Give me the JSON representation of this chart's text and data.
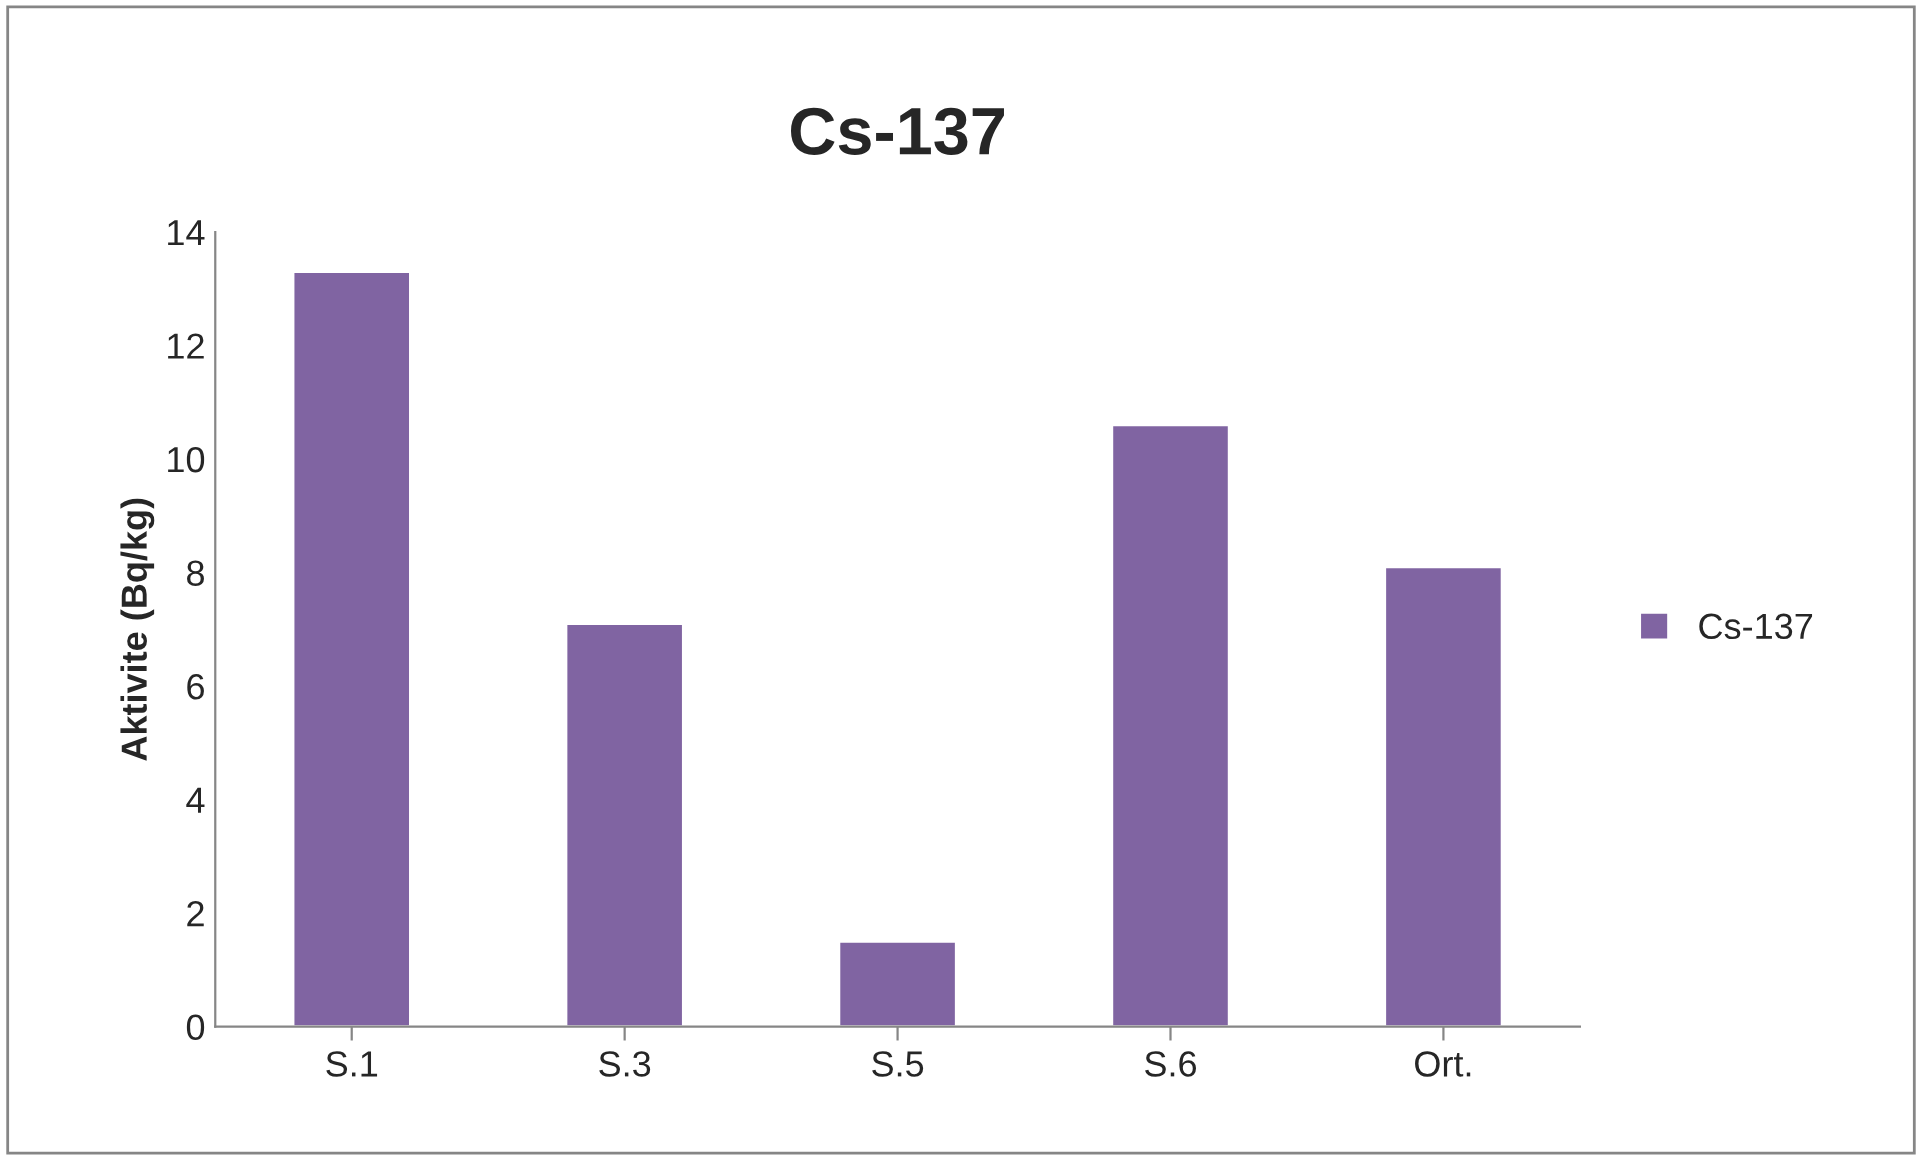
{
  "chart_data": {
    "type": "bar",
    "title": "Cs-137",
    "ylabel": "Aktivite (Bq/kg)",
    "categories": [
      "S.1",
      "S.3",
      "S.5",
      "S.6",
      "Ort."
    ],
    "series": [
      {
        "name": "Cs-137",
        "color": "#8064a2",
        "values": [
          13.3,
          7.1,
          1.5,
          10.6,
          8.1
        ]
      }
    ],
    "ylim": [
      0,
      14
    ],
    "yticks": [
      0,
      2,
      4,
      6,
      8,
      10,
      12,
      14
    ],
    "grid": false,
    "legend": "right"
  }
}
